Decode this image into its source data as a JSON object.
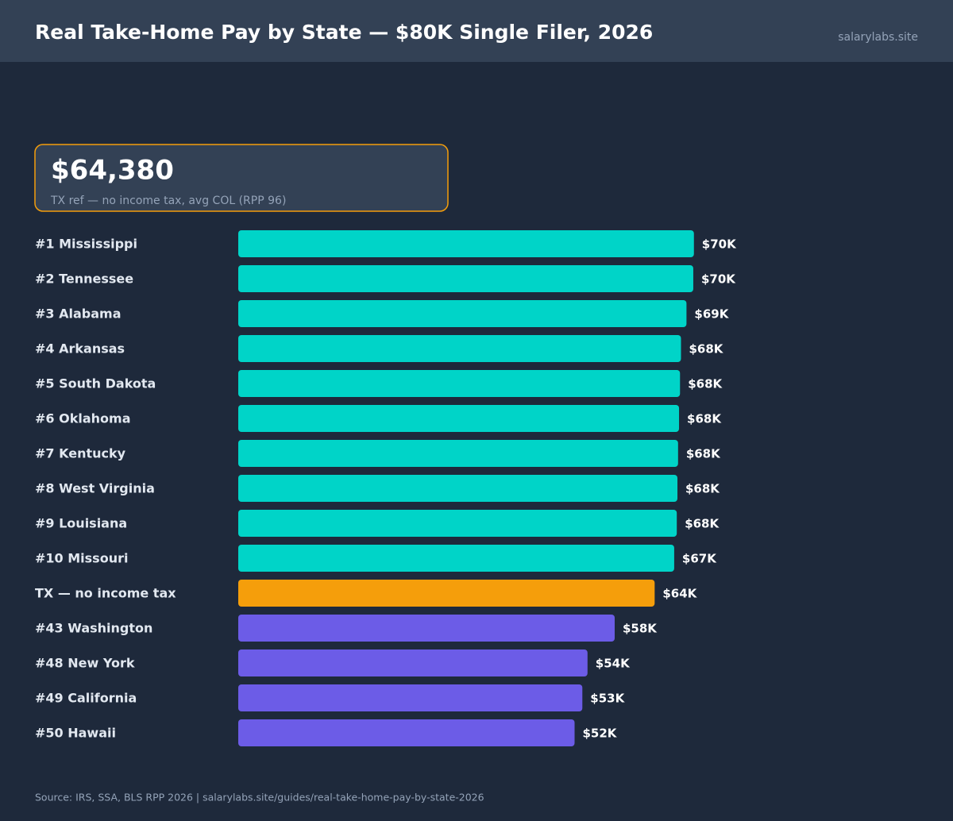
{
  "chart_data": {
    "type": "bar",
    "orientation": "horizontal",
    "title": "Real Take-Home Pay by State — $80K Single Filer, 2026",
    "site": "salarylabs.site",
    "callout": {
      "value": "$64,380",
      "note": "TX ref — no income tax, avg COL (RPP 96)"
    },
    "categories": [
      "#1 Mississippi",
      "#2 Tennessee",
      "#3 Alabama",
      "#4 Arkansas",
      "#5 South Dakota",
      "#6 Oklahoma",
      "#7 Kentucky",
      "#8 West Virginia",
      "#9 Louisiana",
      "#10 Missouri",
      "TX — no income tax",
      "#43 Washington",
      "#48 New York",
      "#49 California",
      "#50 Hawaii"
    ],
    "values": [
      70450,
      70350,
      69300,
      68450,
      68300,
      68150,
      68000,
      67900,
      67800,
      67400,
      64380,
      58200,
      54000,
      53200,
      52000
    ],
    "value_labels": [
      "$70K",
      "$70K",
      "$69K",
      "$68K",
      "$68K",
      "$68K",
      "$68K",
      "$68K",
      "$68K",
      "$67K",
      "$64K",
      "$58K",
      "$54K",
      "$53K",
      "$52K"
    ],
    "colors": [
      "#00d4c8",
      "#00d4c8",
      "#00d4c8",
      "#00d4c8",
      "#00d4c8",
      "#00d4c8",
      "#00d4c8",
      "#00d4c8",
      "#00d4c8",
      "#00d4c8",
      "#f59e0b",
      "#6c5ce7",
      "#6c5ce7",
      "#6c5ce7",
      "#6c5ce7"
    ],
    "xlim": [
      0,
      90000
    ],
    "source": "Source: IRS, SSA, BLS RPP 2026 | salarylabs.site/guides/real-take-home-pay-by-state-2026"
  }
}
